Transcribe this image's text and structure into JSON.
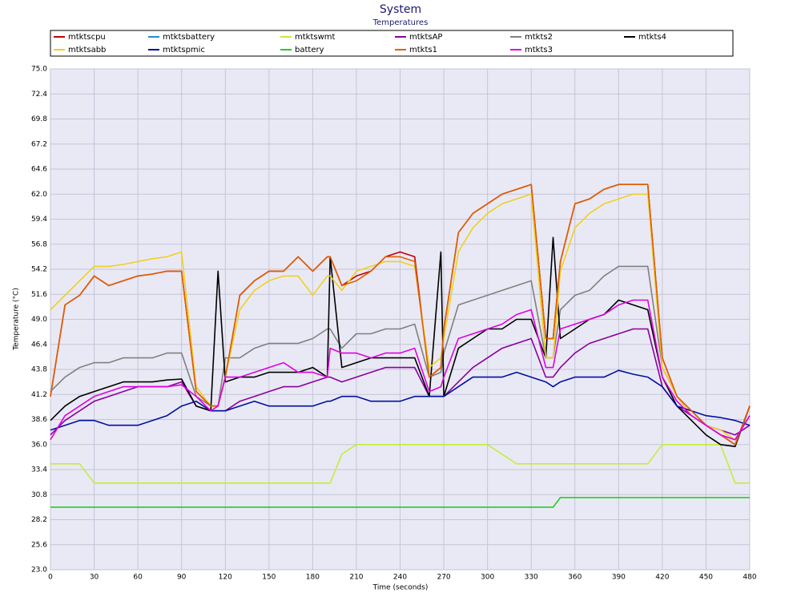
{
  "chart_data": {
    "type": "line",
    "title": "System",
    "subtitle": "Temperatures",
    "x_label": "Time (seconds)",
    "y_label": "Temperature (°C)",
    "x": [
      0,
      10,
      20,
      30,
      40,
      50,
      60,
      70,
      80,
      90,
      100,
      110,
      115,
      120,
      130,
      140,
      150,
      160,
      170,
      180,
      190,
      192,
      200,
      210,
      220,
      230,
      240,
      250,
      260,
      268,
      270,
      280,
      290,
      300,
      310,
      320,
      330,
      340,
      345,
      350,
      360,
      370,
      380,
      390,
      400,
      410,
      420,
      430,
      440,
      450,
      460,
      470,
      480
    ],
    "xlim": [
      0,
      480
    ],
    "xticks": [
      0,
      30,
      60,
      90,
      120,
      150,
      180,
      210,
      240,
      270,
      300,
      330,
      360,
      390,
      420,
      450,
      480
    ],
    "ylim": [
      23,
      75
    ],
    "yticks": [
      {
        "value": 23,
        "label": "23.0"
      },
      25.6,
      28.2,
      30.8,
      33.4,
      {
        "value": 36,
        "label": "36.0"
      },
      38.6,
      41.2,
      43.8,
      46.4,
      {
        "value": 49,
        "label": "49.0"
      },
      51.6,
      54.2,
      56.8,
      59.4,
      {
        "value": 62,
        "label": "62.0"
      },
      64.6,
      67.2,
      69.8,
      72.4,
      {
        "value": 75,
        "label": "75.0"
      }
    ],
    "grid": true,
    "legend": "top",
    "series": [
      {
        "name": "mtktscpu",
        "color": "#c00000",
        "values": [
          41,
          50.5,
          51.5,
          53.5,
          52.5,
          53,
          53.5,
          53.7,
          54,
          54,
          41.5,
          40,
          40,
          43,
          51.5,
          53,
          54,
          54,
          55.5,
          54,
          55.5,
          55.5,
          52.5,
          53.5,
          54,
          55.5,
          56,
          55.5,
          43,
          44,
          48,
          58,
          60,
          61,
          62,
          62.5,
          63,
          47,
          47,
          55,
          61,
          61.5,
          62.5,
          63,
          63,
          63,
          45,
          41,
          39.5,
          38,
          37,
          36,
          40
        ]
      },
      {
        "name": "mtktsbattery",
        "color": "#1f8fcf",
        "values": [
          null,
          null,
          null,
          null,
          null,
          null,
          null,
          null,
          null,
          null,
          null,
          null,
          null,
          null,
          null,
          null,
          null,
          null,
          null,
          null,
          null,
          null,
          null,
          null,
          null,
          null,
          null,
          null,
          null,
          null,
          null,
          null,
          null,
          null,
          null,
          null,
          null,
          null,
          null,
          null,
          null,
          null,
          null,
          null,
          null,
          null,
          null,
          null,
          null,
          null,
          null,
          null,
          null
        ]
      },
      {
        "name": "mtktswmt",
        "color": "#c4ec3c",
        "values": [
          34,
          34,
          34,
          32,
          32,
          32,
          32,
          32,
          32,
          32,
          32,
          32,
          32,
          32,
          32,
          32,
          32,
          32,
          32,
          32,
          32,
          32,
          35,
          36,
          36,
          36,
          36,
          36,
          36,
          36,
          36,
          36,
          36,
          36,
          35,
          34,
          34,
          34,
          34,
          34,
          34,
          34,
          34,
          34,
          34,
          34,
          36,
          36,
          36,
          36,
          36,
          32,
          32
        ]
      },
      {
        "name": "mtktsAP",
        "color": "#8b00a0",
        "values": [
          37,
          38.5,
          39.5,
          40.5,
          41,
          41.5,
          42,
          42,
          42,
          42.5,
          40,
          39.5,
          39.5,
          39.5,
          40.5,
          41,
          41.5,
          42,
          42,
          42.5,
          43,
          43,
          42.5,
          43,
          43.5,
          44,
          44,
          44,
          41,
          41,
          41,
          42.5,
          44,
          45,
          46,
          46.5,
          47,
          43,
          43,
          44,
          45.5,
          46.5,
          47,
          47.5,
          48,
          48,
          42,
          40,
          39,
          38,
          37.5,
          37,
          38
        ]
      },
      {
        "name": "mtkts2",
        "color": "#808080",
        "values": [
          41.5,
          43,
          44,
          44.5,
          44.5,
          45,
          45,
          45,
          45.5,
          45.5,
          41,
          40,
          40,
          45,
          45,
          46,
          46.5,
          46.5,
          46.5,
          47,
          48,
          48,
          46,
          47.5,
          47.5,
          48,
          48,
          48.5,
          43,
          43.5,
          45.5,
          50.5,
          51,
          51.5,
          52,
          52.5,
          53,
          45,
          45,
          50,
          51.5,
          52,
          53.5,
          54.5,
          54.5,
          54.5,
          44,
          41,
          39.5,
          38,
          37,
          36.5,
          39
        ]
      },
      {
        "name": "mtkts4",
        "color": "#000000",
        "values": [
          38.5,
          40,
          41,
          41.5,
          42,
          42.5,
          42.5,
          42.5,
          42.7,
          42.8,
          40,
          39.5,
          54,
          42.5,
          43,
          43,
          43.5,
          43.5,
          43.5,
          44,
          43,
          55.5,
          44,
          44.5,
          45,
          45,
          45,
          45,
          41,
          56,
          41,
          46,
          47,
          48,
          48,
          49,
          49,
          45,
          57.5,
          47,
          48,
          49,
          49.5,
          51,
          50.5,
          50,
          43,
          40,
          38.5,
          37,
          36,
          35.8,
          40
        ]
      },
      {
        "name": "mtktsabb",
        "color": "#f0d020",
        "values": [
          50,
          51.5,
          53,
          54.5,
          54.5,
          54.7,
          55,
          55.3,
          55.5,
          56,
          42,
          40,
          40,
          43,
          50,
          52,
          53,
          53.5,
          53.5,
          51.5,
          53.5,
          53.5,
          52,
          54,
          54.5,
          55,
          55,
          54.5,
          44,
          45,
          47,
          56,
          58.5,
          60,
          61,
          61.5,
          62,
          45,
          45,
          54,
          58.5,
          60,
          61,
          61.5,
          62,
          62,
          44,
          41,
          39,
          38,
          37.5,
          36.5,
          39
        ]
      },
      {
        "name": "mtktspmic",
        "color": "#0010a0",
        "values": [
          37.5,
          38,
          38.5,
          38.5,
          38,
          38,
          38,
          38.5,
          39,
          40,
          40.5,
          39.5,
          39.5,
          39.5,
          40,
          40.5,
          40,
          40,
          40,
          40,
          40.5,
          40.5,
          41,
          41,
          40.5,
          40.5,
          40.5,
          41,
          41,
          41,
          41,
          42,
          43,
          43,
          43,
          43.5,
          43,
          42.5,
          42,
          42.5,
          43,
          43,
          43,
          43.7,
          43.3,
          43,
          42,
          40,
          39.5,
          39,
          38.8,
          38.5,
          38
        ]
      },
      {
        "name": "battery",
        "color": "#20d020",
        "values": [
          29.5,
          29.5,
          29.5,
          29.5,
          29.5,
          29.5,
          29.5,
          29.5,
          29.5,
          29.5,
          29.5,
          29.5,
          29.5,
          29.5,
          29.5,
          29.5,
          29.5,
          29.5,
          29.5,
          29.5,
          29.5,
          29.5,
          29.5,
          29.5,
          29.5,
          29.5,
          29.5,
          29.5,
          29.5,
          29.5,
          29.5,
          29.5,
          29.5,
          29.5,
          29.5,
          29.5,
          29.5,
          29.5,
          29.5,
          30.5,
          30.5,
          30.5,
          30.5,
          30.5,
          30.5,
          30.5,
          30.5,
          30.5,
          30.5,
          30.5,
          30.5,
          30.5,
          30.5
        ]
      },
      {
        "name": "mtkts1",
        "color": "#e06000",
        "values": [
          41,
          50.5,
          51.5,
          53.5,
          52.5,
          53,
          53.5,
          53.7,
          54,
          54,
          41.5,
          40,
          40,
          43,
          51.5,
          53,
          54,
          54,
          55.5,
          54,
          55.5,
          55.5,
          52.5,
          53,
          54,
          55.5,
          55.5,
          55,
          43,
          44,
          48,
          58,
          60,
          61,
          62,
          62.5,
          63,
          47,
          47,
          55,
          61,
          61.5,
          62.5,
          63,
          63,
          63,
          45,
          41,
          39.5,
          38,
          37,
          36,
          40
        ]
      },
      {
        "name": "mtkts3",
        "color": "#e000e0",
        "values": [
          36.5,
          39,
          40,
          41,
          41.5,
          42,
          42,
          42,
          42,
          42.2,
          41,
          39.5,
          40,
          43,
          43,
          43.5,
          44,
          44.5,
          43.5,
          43.5,
          43,
          46,
          45.5,
          45.5,
          45,
          45.5,
          45.5,
          46,
          41.5,
          42,
          43,
          47,
          47.5,
          48,
          48.5,
          49.5,
          50,
          44,
          44,
          48,
          48.5,
          49,
          49.5,
          50.5,
          51,
          51,
          43,
          40.5,
          39,
          38,
          37,
          36.5,
          39
        ]
      }
    ]
  }
}
